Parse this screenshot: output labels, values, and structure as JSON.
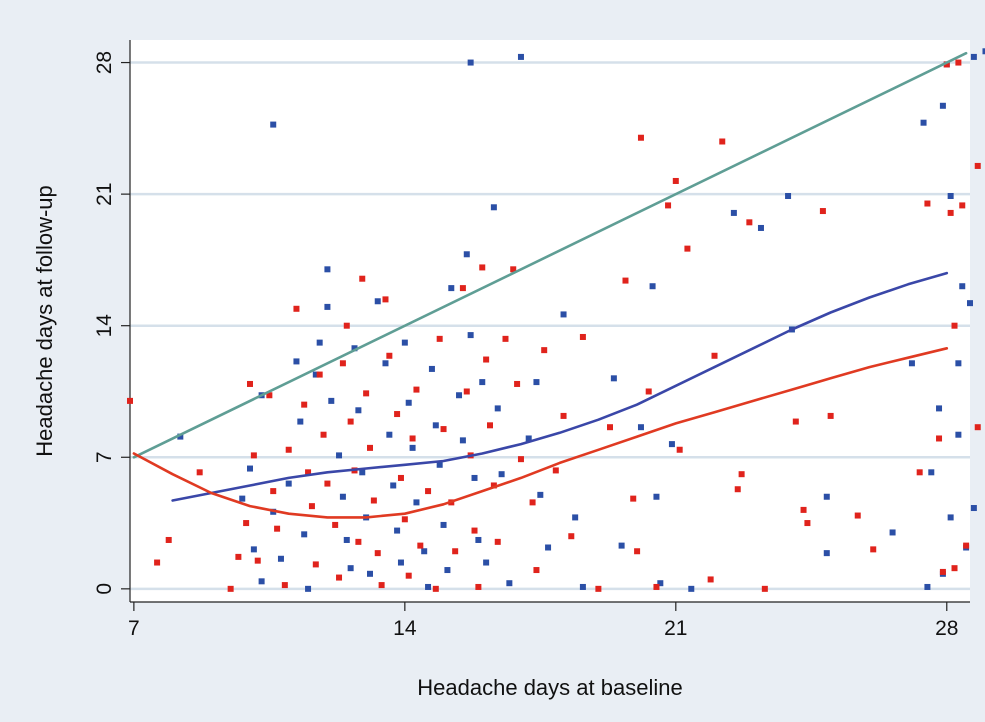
{
  "chart_data": {
    "type": "scatter",
    "title": "",
    "xlabel": "Headache days at baseline",
    "ylabel": "Headache days at follow-up",
    "xlim": [
      6.9,
      28.6
    ],
    "ylim": [
      -0.7,
      29.2
    ],
    "xticks": [
      7,
      14,
      21,
      28
    ],
    "yticks": [
      0,
      7,
      14,
      21,
      28
    ],
    "grid": "horizontal",
    "legend": "none",
    "colors": {
      "blue_points": "#2b4fa6",
      "red_points": "#e0231c",
      "identity_line": "#5f9e95",
      "blue_curve": "#3a47a8",
      "red_curve": "#e03a22",
      "plot_background": "#ffffff",
      "figure_background": "#e9eef4",
      "grid": "#d5e0ea"
    },
    "series": [
      {
        "kind": "line",
        "color": "#5f9e95",
        "points": [
          [
            7,
            7
          ],
          [
            28.5,
            28.5
          ]
        ]
      },
      {
        "kind": "line",
        "color": "#3a47a8",
        "points": [
          [
            8,
            4.7
          ],
          [
            9,
            5.1
          ],
          [
            10,
            5.5
          ],
          [
            11,
            5.9
          ],
          [
            12,
            6.2
          ],
          [
            13,
            6.4
          ],
          [
            14,
            6.6
          ],
          [
            15,
            6.8
          ],
          [
            16,
            7.2
          ],
          [
            17,
            7.7
          ],
          [
            18,
            8.3
          ],
          [
            19,
            9.0
          ],
          [
            20,
            9.8
          ],
          [
            21,
            10.8
          ],
          [
            22,
            11.8
          ],
          [
            23,
            12.8
          ],
          [
            24,
            13.8
          ],
          [
            25,
            14.7
          ],
          [
            26,
            15.5
          ],
          [
            27,
            16.2
          ],
          [
            28,
            16.8
          ]
        ]
      },
      {
        "kind": "line",
        "color": "#e03a22",
        "points": [
          [
            7,
            7.2
          ],
          [
            8,
            6.1
          ],
          [
            9,
            5.1
          ],
          [
            10,
            4.4
          ],
          [
            11,
            4.0
          ],
          [
            12,
            3.8
          ],
          [
            13,
            3.8
          ],
          [
            14,
            4.0
          ],
          [
            15,
            4.5
          ],
          [
            16,
            5.2
          ],
          [
            17,
            5.9
          ],
          [
            18,
            6.7
          ],
          [
            19,
            7.4
          ],
          [
            20,
            8.1
          ],
          [
            21,
            8.8
          ],
          [
            22,
            9.4
          ],
          [
            23,
            10.0
          ],
          [
            24,
            10.6
          ],
          [
            25,
            11.2
          ],
          [
            26,
            11.8
          ],
          [
            27,
            12.3
          ],
          [
            28,
            12.8
          ]
        ]
      },
      {
        "kind": "points",
        "color": "#2b4fa6",
        "points": [
          [
            8.2,
            8.1
          ],
          [
            10.3,
            10.3
          ],
          [
            10.6,
            24.7
          ],
          [
            9.8,
            4.8
          ],
          [
            10.0,
            6.4
          ],
          [
            10.1,
            2.1
          ],
          [
            10.3,
            0.4
          ],
          [
            10.6,
            4.1
          ],
          [
            10.8,
            1.6
          ],
          [
            11.0,
            5.6
          ],
          [
            11.2,
            12.1
          ],
          [
            11.3,
            8.9
          ],
          [
            11.4,
            2.9
          ],
          [
            11.5,
            0.0
          ],
          [
            11.7,
            11.4
          ],
          [
            11.8,
            13.1
          ],
          [
            12.0,
            15.0
          ],
          [
            12.0,
            17.0
          ],
          [
            12.1,
            10.0
          ],
          [
            12.3,
            7.1
          ],
          [
            12.4,
            4.9
          ],
          [
            12.5,
            2.6
          ],
          [
            12.6,
            1.1
          ],
          [
            12.7,
            12.8
          ],
          [
            12.8,
            9.5
          ],
          [
            12.9,
            6.2
          ],
          [
            13.0,
            3.8
          ],
          [
            13.1,
            0.8
          ],
          [
            13.3,
            15.3
          ],
          [
            13.5,
            12.0
          ],
          [
            13.6,
            8.2
          ],
          [
            13.7,
            5.5
          ],
          [
            13.8,
            3.1
          ],
          [
            13.9,
            1.4
          ],
          [
            14.0,
            13.1
          ],
          [
            14.1,
            9.9
          ],
          [
            14.2,
            7.5
          ],
          [
            14.3,
            4.6
          ],
          [
            14.5,
            2.0
          ],
          [
            14.6,
            0.1
          ],
          [
            14.7,
            11.7
          ],
          [
            14.8,
            8.7
          ],
          [
            14.9,
            6.6
          ],
          [
            15.0,
            3.4
          ],
          [
            15.1,
            1.0
          ],
          [
            15.2,
            16.0
          ],
          [
            15.4,
            10.3
          ],
          [
            15.5,
            7.9
          ],
          [
            15.6,
            17.8
          ],
          [
            15.7,
            28.0
          ],
          [
            15.7,
            13.5
          ],
          [
            15.8,
            5.9
          ],
          [
            15.9,
            2.6
          ],
          [
            16.0,
            11.0
          ],
          [
            16.1,
            1.4
          ],
          [
            16.3,
            20.3
          ],
          [
            16.4,
            9.6
          ],
          [
            16.5,
            6.1
          ],
          [
            16.7,
            0.3
          ],
          [
            17.0,
            28.3
          ],
          [
            17.2,
            8.0
          ],
          [
            17.4,
            11.0
          ],
          [
            17.5,
            5.0
          ],
          [
            17.7,
            2.2
          ],
          [
            18.1,
            14.6
          ],
          [
            18.4,
            3.8
          ],
          [
            18.6,
            0.1
          ],
          [
            19.4,
            11.2
          ],
          [
            19.6,
            2.3
          ],
          [
            20.1,
            8.6
          ],
          [
            20.4,
            16.1
          ],
          [
            20.5,
            4.9
          ],
          [
            20.6,
            0.3
          ],
          [
            20.9,
            7.7
          ],
          [
            21.4,
            0.0
          ],
          [
            22.5,
            20.0
          ],
          [
            23.2,
            19.2
          ],
          [
            23.9,
            20.9
          ],
          [
            24.0,
            13.8
          ],
          [
            24.9,
            1.9
          ],
          [
            24.9,
            4.9
          ],
          [
            26.6,
            3.0
          ],
          [
            27.1,
            12.0
          ],
          [
            27.4,
            24.8
          ],
          [
            27.5,
            0.1
          ],
          [
            27.6,
            6.2
          ],
          [
            27.8,
            9.6
          ],
          [
            27.9,
            0.8
          ],
          [
            27.9,
            25.7
          ],
          [
            28.1,
            20.9
          ],
          [
            28.1,
            3.8
          ],
          [
            28.3,
            8.2
          ],
          [
            28.3,
            12.0
          ],
          [
            28.4,
            16.1
          ],
          [
            28.5,
            2.2
          ],
          [
            28.6,
            15.2
          ],
          [
            28.7,
            4.3
          ],
          [
            28.7,
            28.3
          ],
          [
            29.1,
            28.6
          ],
          [
            28.0,
            27.9
          ]
        ]
      },
      {
        "kind": "points",
        "color": "#e0231c",
        "points": [
          [
            6.8,
            10.0
          ],
          [
            7.6,
            1.4
          ],
          [
            7.9,
            2.6
          ],
          [
            8.7,
            6.2
          ],
          [
            9.5,
            0.0
          ],
          [
            9.7,
            1.7
          ],
          [
            9.9,
            3.5
          ],
          [
            10.0,
            10.9
          ],
          [
            10.1,
            7.1
          ],
          [
            10.2,
            1.5
          ],
          [
            10.5,
            10.3
          ],
          [
            10.6,
            5.2
          ],
          [
            10.7,
            3.2
          ],
          [
            10.9,
            0.2
          ],
          [
            11.0,
            7.4
          ],
          [
            11.2,
            14.9
          ],
          [
            11.4,
            9.8
          ],
          [
            11.5,
            6.2
          ],
          [
            11.6,
            4.4
          ],
          [
            11.7,
            1.3
          ],
          [
            11.8,
            11.4
          ],
          [
            11.9,
            8.2
          ],
          [
            12.0,
            5.6
          ],
          [
            12.2,
            3.4
          ],
          [
            12.3,
            0.6
          ],
          [
            12.4,
            12.0
          ],
          [
            12.5,
            14.0
          ],
          [
            12.6,
            8.9
          ],
          [
            12.7,
            6.3
          ],
          [
            12.8,
            2.5
          ],
          [
            12.9,
            16.5
          ],
          [
            13.0,
            10.4
          ],
          [
            13.1,
            7.5
          ],
          [
            13.2,
            4.7
          ],
          [
            13.3,
            1.9
          ],
          [
            13.4,
            0.2
          ],
          [
            13.5,
            15.4
          ],
          [
            13.6,
            12.4
          ],
          [
            13.8,
            9.3
          ],
          [
            13.9,
            5.9
          ],
          [
            14.0,
            3.7
          ],
          [
            14.1,
            0.7
          ],
          [
            14.2,
            8.0
          ],
          [
            14.3,
            10.6
          ],
          [
            14.4,
            2.3
          ],
          [
            14.6,
            5.2
          ],
          [
            14.8,
            0.0
          ],
          [
            14.9,
            13.3
          ],
          [
            15.0,
            8.5
          ],
          [
            15.2,
            4.6
          ],
          [
            15.3,
            2.0
          ],
          [
            15.5,
            16.0
          ],
          [
            15.6,
            10.5
          ],
          [
            15.7,
            7.1
          ],
          [
            15.8,
            3.1
          ],
          [
            15.9,
            0.1
          ],
          [
            16.0,
            17.1
          ],
          [
            16.1,
            12.2
          ],
          [
            16.2,
            8.7
          ],
          [
            16.3,
            5.5
          ],
          [
            16.4,
            2.5
          ],
          [
            16.6,
            13.3
          ],
          [
            16.8,
            17.0
          ],
          [
            16.9,
            10.9
          ],
          [
            17.0,
            6.9
          ],
          [
            17.3,
            4.6
          ],
          [
            17.4,
            1.0
          ],
          [
            17.6,
            12.7
          ],
          [
            17.9,
            6.3
          ],
          [
            18.1,
            9.2
          ],
          [
            18.3,
            2.8
          ],
          [
            18.6,
            13.4
          ],
          [
            19.0,
            0.0
          ],
          [
            19.3,
            8.6
          ],
          [
            19.7,
            16.4
          ],
          [
            19.9,
            4.8
          ],
          [
            20.0,
            2.0
          ],
          [
            20.1,
            24.0
          ],
          [
            20.3,
            10.5
          ],
          [
            20.5,
            0.1
          ],
          [
            20.8,
            20.4
          ],
          [
            21.0,
            21.7
          ],
          [
            21.1,
            7.4
          ],
          [
            21.3,
            18.1
          ],
          [
            21.9,
            0.5
          ],
          [
            22.0,
            12.4
          ],
          [
            22.2,
            23.8
          ],
          [
            22.6,
            5.3
          ],
          [
            22.7,
            6.1
          ],
          [
            22.9,
            19.5
          ],
          [
            23.3,
            0.0
          ],
          [
            24.1,
            8.9
          ],
          [
            24.3,
            4.2
          ],
          [
            24.4,
            3.5
          ],
          [
            24.8,
            20.1
          ],
          [
            25.0,
            9.2
          ],
          [
            25.7,
            3.9
          ],
          [
            26.1,
            2.1
          ],
          [
            27.3,
            6.2
          ],
          [
            27.5,
            20.5
          ],
          [
            27.8,
            8.0
          ],
          [
            27.9,
            0.9
          ],
          [
            28.0,
            27.9
          ],
          [
            28.1,
            20.0
          ],
          [
            28.2,
            14.0
          ],
          [
            28.2,
            1.1
          ],
          [
            28.3,
            28.0
          ],
          [
            28.4,
            20.4
          ],
          [
            28.5,
            2.3
          ],
          [
            28.8,
            22.5
          ],
          [
            28.8,
            8.6
          ]
        ]
      }
    ]
  }
}
